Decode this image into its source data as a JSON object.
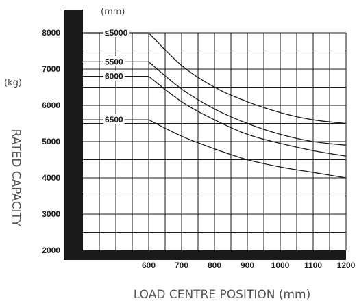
{
  "chart_data": {
    "type": "line",
    "x_unit": "(mm)",
    "y_unit": "(kg)",
    "xlabel": "LOAD CENTRE POSITION (mm)",
    "ylabel": "RATED CAPACITY",
    "xlim": [
      400,
      1200
    ],
    "ylim": [
      2000,
      8000
    ],
    "x_ticks": [
      600,
      700,
      800,
      900,
      1000,
      1100,
      1200
    ],
    "y_ticks": [
      2000,
      3000,
      4000,
      5000,
      6000,
      7000,
      8000
    ],
    "grid": true,
    "series": [
      {
        "name": "≤5000",
        "points": [
          [
            400,
            8000
          ],
          [
            600,
            8000
          ],
          [
            700,
            7100
          ],
          [
            800,
            6500
          ],
          [
            900,
            6100
          ],
          [
            1000,
            5800
          ],
          [
            1100,
            5600
          ],
          [
            1200,
            5500
          ]
        ]
      },
      {
        "name": "5500",
        "points": [
          [
            400,
            7200
          ],
          [
            600,
            7200
          ],
          [
            700,
            6450
          ],
          [
            800,
            5900
          ],
          [
            900,
            5500
          ],
          [
            1000,
            5200
          ],
          [
            1100,
            5000
          ],
          [
            1200,
            4900
          ]
        ]
      },
      {
        "name": "6000",
        "points": [
          [
            400,
            6800
          ],
          [
            600,
            6800
          ],
          [
            700,
            6100
          ],
          [
            800,
            5600
          ],
          [
            900,
            5200
          ],
          [
            1000,
            4950
          ],
          [
            1100,
            4750
          ],
          [
            1200,
            4600
          ]
        ]
      },
      {
        "name": "6500",
        "points": [
          [
            400,
            5600
          ],
          [
            600,
            5600
          ],
          [
            700,
            5150
          ],
          [
            800,
            4800
          ],
          [
            900,
            4500
          ],
          [
            1000,
            4300
          ],
          [
            1100,
            4150
          ],
          [
            1200,
            4000
          ]
        ]
      }
    ]
  }
}
